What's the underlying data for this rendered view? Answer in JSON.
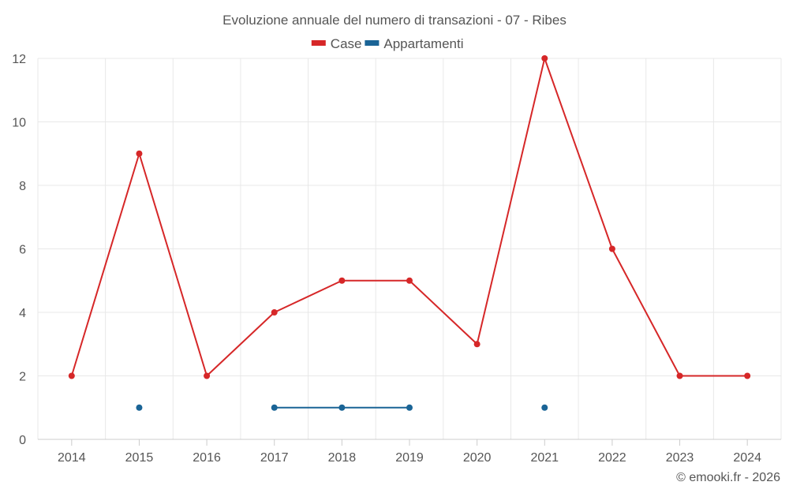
{
  "chart_data": {
    "type": "line",
    "title": "Evoluzione annuale del numero di transazioni - 07 - Ribes",
    "xlabel": "",
    "ylabel": "",
    "x": [
      "2014",
      "2015",
      "2016",
      "2017",
      "2018",
      "2019",
      "2020",
      "2021",
      "2022",
      "2023",
      "2024"
    ],
    "ylim": [
      0,
      12
    ],
    "yticks": [
      0,
      2,
      4,
      6,
      8,
      10,
      12
    ],
    "grid": true,
    "legend_position": "top-center",
    "series": [
      {
        "name": "Case",
        "color": "#d62728",
        "values": [
          2,
          9,
          2,
          4,
          5,
          5,
          3,
          12,
          6,
          2,
          2
        ]
      },
      {
        "name": "Appartamenti",
        "color": "#1a6496",
        "values": [
          null,
          1,
          null,
          1,
          1,
          1,
          null,
          1,
          null,
          null,
          null
        ]
      }
    ],
    "credit": "© emooki.fr - 2026"
  }
}
